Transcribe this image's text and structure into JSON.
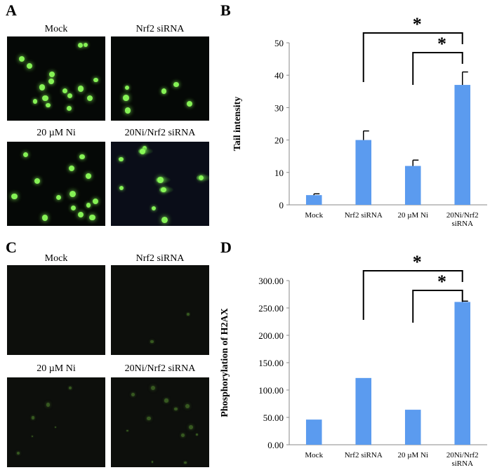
{
  "panels": {
    "a": {
      "letter": "A",
      "images": [
        {
          "label": "Mock",
          "tone": "comet"
        },
        {
          "label": "Nrf2 siRNA",
          "tone": "comet"
        },
        {
          "label": "20 µM Ni",
          "tone": "comet"
        },
        {
          "label": "20Ni/Nrf2 siRNA",
          "tone": "comet-tail"
        }
      ]
    },
    "c": {
      "letter": "C",
      "images": [
        {
          "label": "Mock",
          "tone": "dim"
        },
        {
          "label": "Nrf2 siRNA",
          "tone": "dim"
        },
        {
          "label": "20 µM Ni",
          "tone": "dim"
        },
        {
          "label": "20Ni/Nrf2 siRNA",
          "tone": "dim"
        }
      ]
    },
    "b": {
      "letter": "B"
    },
    "d": {
      "letter": "D"
    }
  },
  "chart_data": [
    {
      "type": "bar",
      "categories": [
        "Mock",
        "Nrf2 siRNA",
        "20 µM Ni",
        "20Ni/Nrf2 siRNA"
      ],
      "values": [
        3,
        20,
        12,
        37
      ],
      "errors": [
        0.4,
        2.8,
        1.8,
        4
      ],
      "ylabel": "Tail intensity",
      "ylim": [
        0,
        50
      ],
      "yticks": [
        "0",
        "10",
        "20",
        "30",
        "40",
        "50"
      ],
      "bar_color": "#5b9bef",
      "significance": [
        {
          "from": "Nrf2 siRNA",
          "to": "20Ni/Nrf2 siRNA",
          "label": "*"
        },
        {
          "from": "20 µM Ni",
          "to": "20Ni/Nrf2 siRNA",
          "label": "*"
        }
      ]
    },
    {
      "type": "bar",
      "categories": [
        "Mock",
        "Nrf2 siRNA",
        "20 µM Ni",
        "20Ni/Nrf2 siRNA"
      ],
      "values": [
        46,
        122,
        64,
        261
      ],
      "errors": [
        0,
        0,
        0,
        1.5
      ],
      "ylabel": "Phosphorylation of H2AX",
      "ylim": [
        0,
        300
      ],
      "yticks": [
        "0.00",
        "50.00",
        "100.00",
        "150.00",
        "200.00",
        "250.00",
        "300.00"
      ],
      "bar_color": "#5b9bef",
      "significance": [
        {
          "from": "Nrf2 siRNA",
          "to": "20Ni/Nrf2 siRNA",
          "label": "*"
        },
        {
          "from": "20 µM Ni",
          "to": "20Ni/Nrf2 siRNA",
          "label": "*"
        }
      ]
    }
  ]
}
